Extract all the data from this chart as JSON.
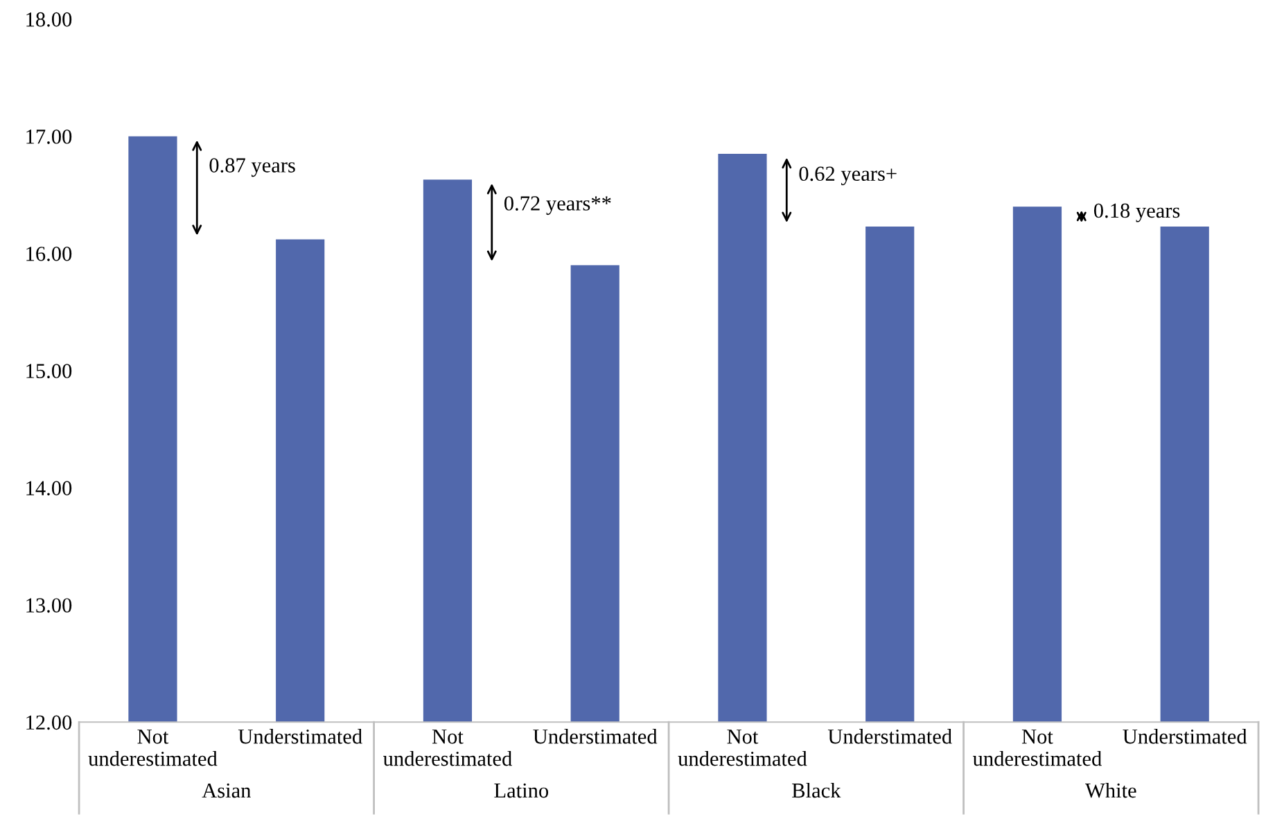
{
  "chart_data": {
    "type": "bar",
    "categories": [
      "Not\nunderestimated",
      "Understimated",
      "Not\nunderestimated",
      "Understimated",
      "Not\nunderestimated",
      "Understimated",
      "Not\nunderestimated",
      "Understimated"
    ],
    "values": [
      17.0,
      16.12,
      16.63,
      15.9,
      16.85,
      16.23,
      16.4,
      16.23
    ],
    "color": "#5168ac",
    "ylim": [
      12,
      18
    ],
    "yticks": [
      {
        "value": 12,
        "label": "12.00"
      },
      {
        "value": 13,
        "label": "13.00"
      },
      {
        "value": 14,
        "label": "14.00"
      },
      {
        "value": 15,
        "label": "15.00"
      },
      {
        "value": 16,
        "label": "16.00"
      },
      {
        "value": 17,
        "label": "17.00"
      },
      {
        "value": 18,
        "label": "18.00"
      }
    ],
    "annotations": [
      "0.87 years",
      "0.72 years**",
      "0.62 years+",
      "0.18 years",
      "Asian",
      "Latino",
      "Black",
      "White"
    ],
    "grid": false
  }
}
